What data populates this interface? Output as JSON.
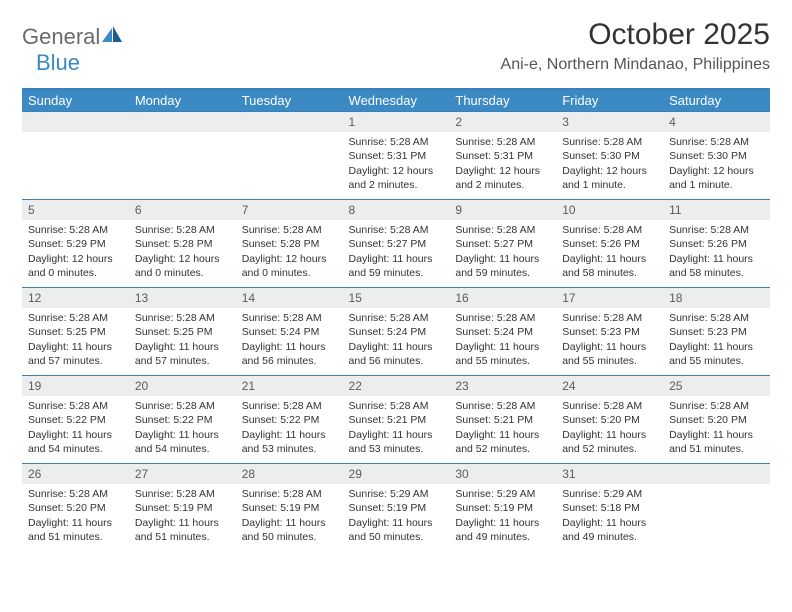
{
  "logo": {
    "part1": "General",
    "part2": "Blue"
  },
  "title": "October 2025",
  "location": "Ani-e, Northern Mindanao, Philippines",
  "colors": {
    "header_bg": "#3b8ac4",
    "header_text": "#ffffff",
    "border": "#3b7fb5",
    "daynum_bg": "#eceded",
    "logo_gray": "#6b6b6b",
    "logo_blue": "#3b8ac4"
  },
  "weekdays": [
    "Sunday",
    "Monday",
    "Tuesday",
    "Wednesday",
    "Thursday",
    "Friday",
    "Saturday"
  ],
  "weeks": [
    [
      {
        "blank": true
      },
      {
        "blank": true
      },
      {
        "blank": true
      },
      {
        "day": "1",
        "sunrise": "Sunrise: 5:28 AM",
        "sunset": "Sunset: 5:31 PM",
        "daylight": "Daylight: 12 hours and 2 minutes."
      },
      {
        "day": "2",
        "sunrise": "Sunrise: 5:28 AM",
        "sunset": "Sunset: 5:31 PM",
        "daylight": "Daylight: 12 hours and 2 minutes."
      },
      {
        "day": "3",
        "sunrise": "Sunrise: 5:28 AM",
        "sunset": "Sunset: 5:30 PM",
        "daylight": "Daylight: 12 hours and 1 minute."
      },
      {
        "day": "4",
        "sunrise": "Sunrise: 5:28 AM",
        "sunset": "Sunset: 5:30 PM",
        "daylight": "Daylight: 12 hours and 1 minute."
      }
    ],
    [
      {
        "day": "5",
        "sunrise": "Sunrise: 5:28 AM",
        "sunset": "Sunset: 5:29 PM",
        "daylight": "Daylight: 12 hours and 0 minutes."
      },
      {
        "day": "6",
        "sunrise": "Sunrise: 5:28 AM",
        "sunset": "Sunset: 5:28 PM",
        "daylight": "Daylight: 12 hours and 0 minutes."
      },
      {
        "day": "7",
        "sunrise": "Sunrise: 5:28 AM",
        "sunset": "Sunset: 5:28 PM",
        "daylight": "Daylight: 12 hours and 0 minutes."
      },
      {
        "day": "8",
        "sunrise": "Sunrise: 5:28 AM",
        "sunset": "Sunset: 5:27 PM",
        "daylight": "Daylight: 11 hours and 59 minutes."
      },
      {
        "day": "9",
        "sunrise": "Sunrise: 5:28 AM",
        "sunset": "Sunset: 5:27 PM",
        "daylight": "Daylight: 11 hours and 59 minutes."
      },
      {
        "day": "10",
        "sunrise": "Sunrise: 5:28 AM",
        "sunset": "Sunset: 5:26 PM",
        "daylight": "Daylight: 11 hours and 58 minutes."
      },
      {
        "day": "11",
        "sunrise": "Sunrise: 5:28 AM",
        "sunset": "Sunset: 5:26 PM",
        "daylight": "Daylight: 11 hours and 58 minutes."
      }
    ],
    [
      {
        "day": "12",
        "sunrise": "Sunrise: 5:28 AM",
        "sunset": "Sunset: 5:25 PM",
        "daylight": "Daylight: 11 hours and 57 minutes."
      },
      {
        "day": "13",
        "sunrise": "Sunrise: 5:28 AM",
        "sunset": "Sunset: 5:25 PM",
        "daylight": "Daylight: 11 hours and 57 minutes."
      },
      {
        "day": "14",
        "sunrise": "Sunrise: 5:28 AM",
        "sunset": "Sunset: 5:24 PM",
        "daylight": "Daylight: 11 hours and 56 minutes."
      },
      {
        "day": "15",
        "sunrise": "Sunrise: 5:28 AM",
        "sunset": "Sunset: 5:24 PM",
        "daylight": "Daylight: 11 hours and 56 minutes."
      },
      {
        "day": "16",
        "sunrise": "Sunrise: 5:28 AM",
        "sunset": "Sunset: 5:24 PM",
        "daylight": "Daylight: 11 hours and 55 minutes."
      },
      {
        "day": "17",
        "sunrise": "Sunrise: 5:28 AM",
        "sunset": "Sunset: 5:23 PM",
        "daylight": "Daylight: 11 hours and 55 minutes."
      },
      {
        "day": "18",
        "sunrise": "Sunrise: 5:28 AM",
        "sunset": "Sunset: 5:23 PM",
        "daylight": "Daylight: 11 hours and 55 minutes."
      }
    ],
    [
      {
        "day": "19",
        "sunrise": "Sunrise: 5:28 AM",
        "sunset": "Sunset: 5:22 PM",
        "daylight": "Daylight: 11 hours and 54 minutes."
      },
      {
        "day": "20",
        "sunrise": "Sunrise: 5:28 AM",
        "sunset": "Sunset: 5:22 PM",
        "daylight": "Daylight: 11 hours and 54 minutes."
      },
      {
        "day": "21",
        "sunrise": "Sunrise: 5:28 AM",
        "sunset": "Sunset: 5:22 PM",
        "daylight": "Daylight: 11 hours and 53 minutes."
      },
      {
        "day": "22",
        "sunrise": "Sunrise: 5:28 AM",
        "sunset": "Sunset: 5:21 PM",
        "daylight": "Daylight: 11 hours and 53 minutes."
      },
      {
        "day": "23",
        "sunrise": "Sunrise: 5:28 AM",
        "sunset": "Sunset: 5:21 PM",
        "daylight": "Daylight: 11 hours and 52 minutes."
      },
      {
        "day": "24",
        "sunrise": "Sunrise: 5:28 AM",
        "sunset": "Sunset: 5:20 PM",
        "daylight": "Daylight: 11 hours and 52 minutes."
      },
      {
        "day": "25",
        "sunrise": "Sunrise: 5:28 AM",
        "sunset": "Sunset: 5:20 PM",
        "daylight": "Daylight: 11 hours and 51 minutes."
      }
    ],
    [
      {
        "day": "26",
        "sunrise": "Sunrise: 5:28 AM",
        "sunset": "Sunset: 5:20 PM",
        "daylight": "Daylight: 11 hours and 51 minutes."
      },
      {
        "day": "27",
        "sunrise": "Sunrise: 5:28 AM",
        "sunset": "Sunset: 5:19 PM",
        "daylight": "Daylight: 11 hours and 51 minutes."
      },
      {
        "day": "28",
        "sunrise": "Sunrise: 5:28 AM",
        "sunset": "Sunset: 5:19 PM",
        "daylight": "Daylight: 11 hours and 50 minutes."
      },
      {
        "day": "29",
        "sunrise": "Sunrise: 5:29 AM",
        "sunset": "Sunset: 5:19 PM",
        "daylight": "Daylight: 11 hours and 50 minutes."
      },
      {
        "day": "30",
        "sunrise": "Sunrise: 5:29 AM",
        "sunset": "Sunset: 5:19 PM",
        "daylight": "Daylight: 11 hours and 49 minutes."
      },
      {
        "day": "31",
        "sunrise": "Sunrise: 5:29 AM",
        "sunset": "Sunset: 5:18 PM",
        "daylight": "Daylight: 11 hours and 49 minutes."
      },
      {
        "blank": true
      }
    ]
  ]
}
